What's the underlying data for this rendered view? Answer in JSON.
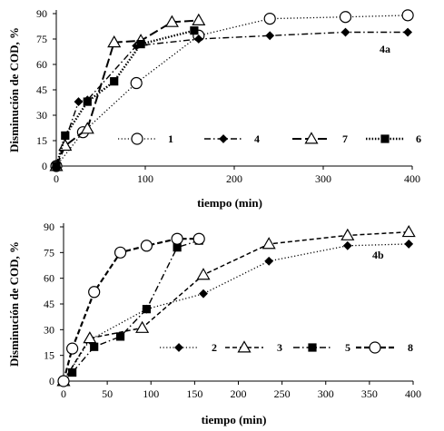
{
  "chart_data": [
    {
      "type": "line",
      "panel_label": "4a",
      "xlabel": "tiempo (min)",
      "ylabel": "Disminución de COD, %",
      "xlim": [
        0,
        400
      ],
      "ylim": [
        0,
        90
      ],
      "xticks": [
        0,
        100,
        200,
        300,
        400
      ],
      "yticks": [
        0,
        15,
        30,
        45,
        60,
        75,
        90
      ],
      "grid": false,
      "legend_position": "center, inside plot, single row",
      "series": [
        {
          "name": "1",
          "line_style": "dotted",
          "marker": "open-circle",
          "x": [
            0,
            30,
            90,
            160,
            240,
            325,
            395
          ],
          "y": [
            0,
            20,
            49,
            77,
            87,
            88,
            89
          ]
        },
        {
          "name": "4",
          "line_style": "dash-dot",
          "marker": "filled-diamond",
          "x": [
            0,
            25,
            35,
            90,
            160,
            240,
            325,
            395
          ],
          "y": [
            0,
            38,
            39,
            71,
            75,
            77,
            79,
            79
          ]
        },
        {
          "name": "7",
          "line_style": "long-dash",
          "marker": "open-triangle",
          "x": [
            0,
            10,
            35,
            65,
            95,
            130,
            160
          ],
          "y": [
            0,
            12,
            22,
            73,
            74,
            85,
            86
          ]
        },
        {
          "name": "6",
          "line_style": "dotted-heavy",
          "marker": "filled-square",
          "x": [
            0,
            10,
            35,
            65,
            95,
            155
          ],
          "y": [
            0,
            18,
            38,
            50,
            72,
            80
          ]
        }
      ]
    },
    {
      "type": "line",
      "panel_label": "4b",
      "xlabel": "tiempo (min)",
      "ylabel": "Disminución  de COD, %",
      "xlim": [
        0,
        400
      ],
      "ylim": [
        0,
        90
      ],
      "xticks": [
        0,
        50,
        100,
        150,
        200,
        250,
        300,
        350,
        400
      ],
      "yticks": [
        0,
        15,
        30,
        45,
        60,
        75,
        90
      ],
      "grid": false,
      "legend_position": "bottom, inside plot, single row",
      "series": [
        {
          "name": "2",
          "line_style": "dotted",
          "marker": "filled-diamond",
          "x": [
            0,
            30,
            95,
            160,
            235,
            325,
            395
          ],
          "y": [
            0,
            24,
            42,
            51,
            70,
            79,
            80
          ]
        },
        {
          "name": "3",
          "line_style": "dashed",
          "marker": "open-triangle",
          "x": [
            0,
            30,
            90,
            160,
            235,
            325,
            395
          ],
          "y": [
            0,
            25,
            31,
            62,
            80,
            85,
            87
          ]
        },
        {
          "name": "5",
          "line_style": "dash-dot",
          "marker": "filled-square",
          "x": [
            0,
            10,
            35,
            65,
            95,
            130,
            155
          ],
          "y": [
            0,
            5,
            20,
            26,
            42,
            78,
            82
          ]
        },
        {
          "name": "8",
          "line_style": "dashed-heavy",
          "marker": "open-circle",
          "x": [
            0,
            10,
            35,
            65,
            95,
            130,
            155
          ],
          "y": [
            0,
            19,
            52,
            75,
            79,
            83,
            83
          ]
        }
      ]
    }
  ]
}
